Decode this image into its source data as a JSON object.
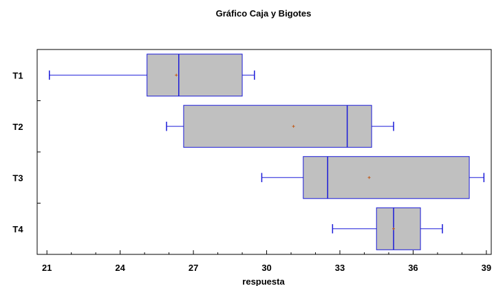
{
  "chart_data": {
    "type": "box",
    "title": "Gráfico Caja y Bigotes",
    "xlabel": "respuesta",
    "ylabel": "",
    "xlim": [
      20.6,
      39.2
    ],
    "xticks": [
      21,
      24,
      27,
      30,
      33,
      36,
      39
    ],
    "categories": [
      "T1",
      "T2",
      "T3",
      "T4"
    ],
    "series": [
      {
        "category": "T1",
        "min": 21.1,
        "q1": 25.1,
        "median": 26.4,
        "q3": 29.0,
        "max": 29.5,
        "mean": 26.3
      },
      {
        "category": "T2",
        "min": 25.9,
        "q1": 26.6,
        "median": 33.3,
        "q3": 34.3,
        "max": 35.2,
        "mean": 31.1
      },
      {
        "category": "T3",
        "min": 29.8,
        "q1": 31.5,
        "median": 32.5,
        "q3": 38.3,
        "max": 38.9,
        "mean": 34.2
      },
      {
        "category": "T4",
        "min": 32.7,
        "q1": 34.5,
        "median": 35.2,
        "q3": 36.3,
        "max": 37.2,
        "mean": 35.2
      }
    ],
    "colors": {
      "box_fill": "#c0c0c0",
      "box_stroke": "#1a1ad8",
      "mean_marker": "#c05a1a",
      "axis": "#000000"
    },
    "grid": false,
    "legend": "none"
  }
}
